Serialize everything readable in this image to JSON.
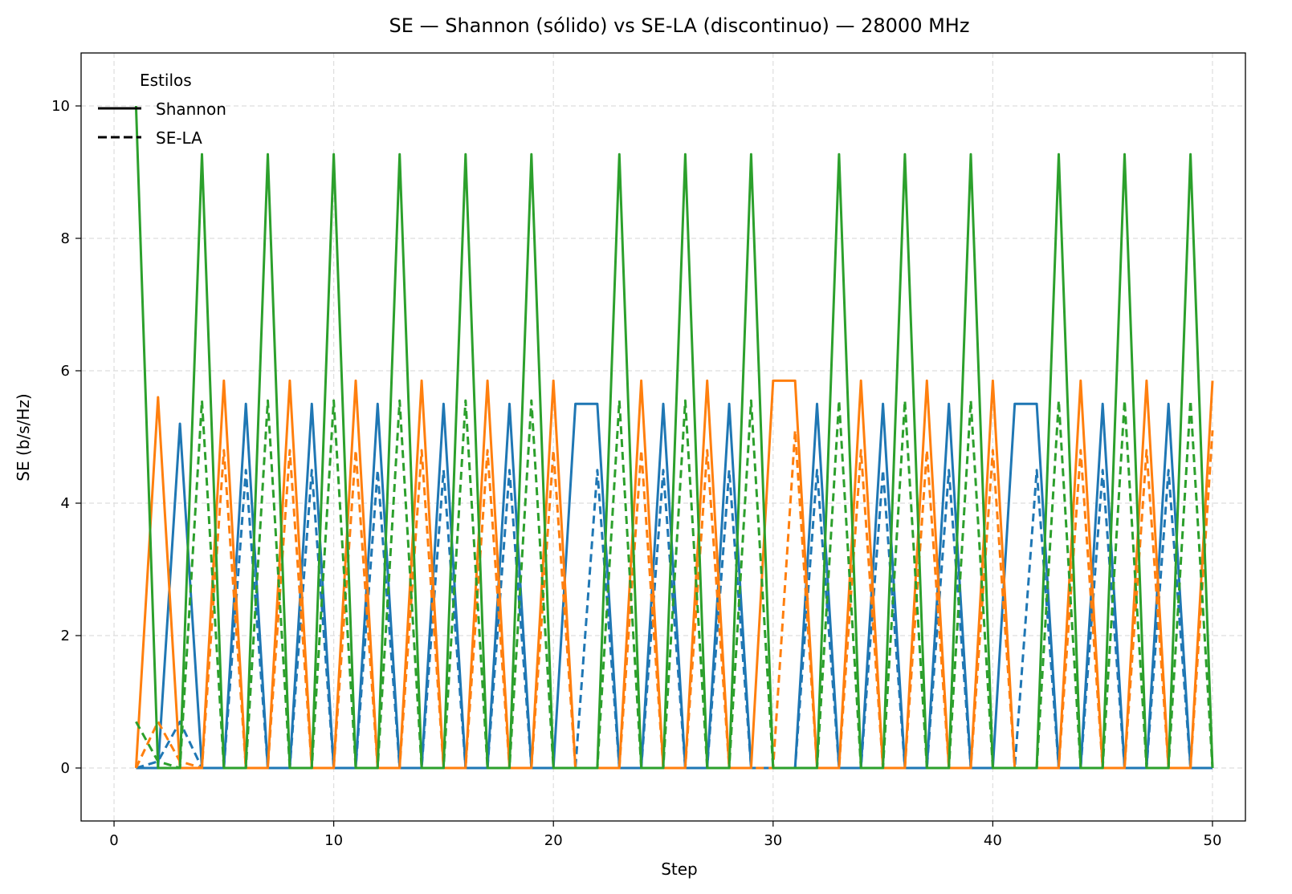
{
  "chart_data": {
    "type": "line",
    "title": "SE — Shannon (sólido) vs SE-LA (discontinuo) — 28000 MHz",
    "xlabel": "Step",
    "ylabel": "SE (b/s/Hz)",
    "xlim": [
      -1.5,
      51.5
    ],
    "ylim": [
      -0.8,
      10.8
    ],
    "xticks": [
      0,
      10,
      20,
      30,
      40,
      50
    ],
    "yticks": [
      0,
      2,
      4,
      6,
      8,
      10
    ],
    "grid": true,
    "legend": {
      "title": "Estilos",
      "placement": "top-left",
      "entries": [
        {
          "label": "Shannon",
          "style": "solid"
        },
        {
          "label": "SE-LA",
          "style": "dashed"
        }
      ]
    },
    "series": [
      {
        "color": "#1f77b4",
        "style": "solid",
        "x": [
          1,
          2,
          3,
          4,
          5,
          6,
          7,
          8,
          9,
          10,
          11,
          12,
          13,
          14,
          15,
          16,
          17,
          18,
          19,
          20,
          21,
          22,
          23,
          24,
          25,
          26,
          27,
          28,
          29,
          30,
          31,
          32,
          33,
          34,
          35,
          36,
          37,
          38,
          39,
          40,
          41,
          42,
          43,
          44,
          45,
          46,
          47,
          48,
          49,
          50
        ],
        "values": [
          0,
          0,
          5.2,
          0,
          0,
          5.5,
          0,
          0,
          5.5,
          0,
          0,
          5.5,
          0,
          0,
          5.5,
          0,
          0,
          5.5,
          0,
          0,
          5.5,
          5.5,
          0,
          0,
          5.5,
          0,
          0,
          5.5,
          0,
          0,
          0,
          5.5,
          0,
          0,
          5.5,
          0,
          0,
          5.5,
          0,
          0,
          5.5,
          5.5,
          0,
          0,
          5.5,
          0,
          0,
          5.5,
          0,
          0
        ]
      },
      {
        "color": "#1f77b4",
        "style": "dashed",
        "x": [
          1,
          2,
          3,
          4,
          5,
          6,
          7,
          8,
          9,
          10,
          11,
          12,
          13,
          14,
          15,
          16,
          17,
          18,
          19,
          20,
          21,
          22,
          23,
          24,
          25,
          26,
          27,
          28,
          29,
          30,
          31,
          32,
          33,
          34,
          35,
          36,
          37,
          38,
          39,
          40,
          41,
          42,
          43,
          44,
          45,
          46,
          47,
          48,
          49,
          50
        ],
        "values": [
          0,
          0.1,
          0.7,
          0,
          0,
          4.5,
          0,
          0,
          4.5,
          0,
          0,
          4.5,
          0,
          0,
          4.5,
          0,
          0,
          4.5,
          0,
          0,
          0,
          4.5,
          0,
          0,
          4.5,
          0,
          0,
          4.5,
          0,
          0,
          0,
          4.5,
          0,
          0,
          4.5,
          0,
          0,
          4.5,
          0,
          0,
          0,
          4.5,
          0,
          0,
          4.5,
          0,
          0,
          4.5,
          0,
          0
        ]
      },
      {
        "color": "#ff7f0e",
        "style": "solid",
        "x": [
          1,
          2,
          3,
          4,
          5,
          6,
          7,
          8,
          9,
          10,
          11,
          12,
          13,
          14,
          15,
          16,
          17,
          18,
          19,
          20,
          21,
          22,
          23,
          24,
          25,
          26,
          27,
          28,
          29,
          30,
          31,
          32,
          33,
          34,
          35,
          36,
          37,
          38,
          39,
          40,
          41,
          42,
          43,
          44,
          45,
          46,
          47,
          48,
          49,
          50
        ],
        "values": [
          0,
          5.6,
          0,
          0,
          5.85,
          0,
          0,
          5.85,
          0,
          0,
          5.85,
          0,
          0,
          5.85,
          0,
          0,
          5.85,
          0,
          0,
          5.85,
          0,
          0,
          0,
          5.85,
          0,
          0,
          5.85,
          0,
          0,
          5.85,
          5.85,
          0,
          0,
          5.85,
          0,
          0,
          5.85,
          0,
          0,
          5.85,
          0,
          0,
          0,
          5.85,
          0,
          0,
          5.85,
          0,
          0,
          5.85
        ]
      },
      {
        "color": "#ff7f0e",
        "style": "dashed",
        "x": [
          1,
          2,
          3,
          4,
          5,
          6,
          7,
          8,
          9,
          10,
          11,
          12,
          13,
          14,
          15,
          16,
          17,
          18,
          19,
          20,
          21,
          22,
          23,
          24,
          25,
          26,
          27,
          28,
          29,
          30,
          31,
          32,
          33,
          34,
          35,
          36,
          37,
          38,
          39,
          40,
          41,
          42,
          43,
          44,
          45,
          46,
          47,
          48,
          49,
          50
        ],
        "values": [
          0,
          0.7,
          0.1,
          0,
          4.8,
          0,
          0,
          4.8,
          0,
          0,
          4.8,
          0,
          0,
          4.8,
          0,
          0,
          4.8,
          0,
          0,
          4.8,
          0,
          0,
          0,
          4.8,
          0,
          0,
          4.8,
          0,
          0,
          0,
          5.1,
          0,
          0,
          4.8,
          0,
          0,
          4.8,
          0,
          0,
          4.8,
          0,
          0,
          0,
          4.8,
          0,
          0,
          4.8,
          0,
          0,
          5.1
        ]
      },
      {
        "color": "#2ca02c",
        "style": "solid",
        "x": [
          1,
          2,
          3,
          4,
          5,
          6,
          7,
          8,
          9,
          10,
          11,
          12,
          13,
          14,
          15,
          16,
          17,
          18,
          19,
          20,
          21,
          22,
          23,
          24,
          25,
          26,
          27,
          28,
          29,
          30,
          31,
          32,
          33,
          34,
          35,
          36,
          37,
          38,
          39,
          40,
          41,
          42,
          43,
          44,
          45,
          46,
          47,
          48,
          49,
          50
        ],
        "values": [
          10,
          0,
          0,
          9.27,
          0,
          0,
          9.27,
          0,
          0,
          9.27,
          0,
          0,
          9.27,
          0,
          0,
          9.27,
          0,
          0,
          9.27,
          0,
          0,
          0,
          9.27,
          0,
          0,
          9.27,
          0,
          0,
          9.27,
          0,
          0,
          0,
          9.27,
          0,
          0,
          9.27,
          0,
          0,
          9.27,
          0,
          0,
          0,
          9.27,
          0,
          0,
          9.27,
          0,
          0,
          9.27,
          0
        ]
      },
      {
        "color": "#2ca02c",
        "style": "dashed",
        "x": [
          1,
          2,
          3,
          4,
          5,
          6,
          7,
          8,
          9,
          10,
          11,
          12,
          13,
          14,
          15,
          16,
          17,
          18,
          19,
          20,
          21,
          22,
          23,
          24,
          25,
          26,
          27,
          28,
          29,
          30,
          31,
          32,
          33,
          34,
          35,
          36,
          37,
          38,
          39,
          40,
          41,
          42,
          43,
          44,
          45,
          46,
          47,
          48,
          49,
          50
        ],
        "values": [
          0.7,
          0.1,
          0,
          5.55,
          0,
          0,
          5.55,
          0,
          0,
          5.55,
          0,
          0,
          5.55,
          0,
          0,
          5.55,
          0,
          0,
          5.55,
          0,
          0,
          0,
          5.55,
          0,
          0,
          5.55,
          0,
          0,
          5.55,
          0,
          0,
          0,
          5.55,
          0,
          0,
          5.55,
          0,
          0,
          5.55,
          0,
          0,
          0,
          5.55,
          0,
          0,
          5.55,
          0,
          0,
          5.55,
          0
        ]
      }
    ]
  }
}
